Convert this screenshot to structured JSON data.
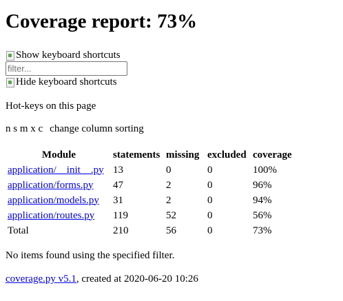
{
  "header": {
    "title": "Coverage report: 73%"
  },
  "keyboard": {
    "show_label": "Show keyboard shortcuts",
    "hide_label": "Hide keyboard shortcuts",
    "hotkeys_heading": "Hot-keys on this page",
    "sort_keys": "n s m x c",
    "sort_description": "change column sorting"
  },
  "filter": {
    "placeholder": "filter...",
    "value": ""
  },
  "table": {
    "headers": {
      "module": "Module",
      "statements": "statements",
      "missing": "missing",
      "excluded": "excluded",
      "coverage": "coverage"
    },
    "rows": [
      {
        "module": "application/__init__.py",
        "statements": "13",
        "missing": "0",
        "excluded": "0",
        "coverage": "100%"
      },
      {
        "module": "application/forms.py",
        "statements": "47",
        "missing": "2",
        "excluded": "0",
        "coverage": "96%"
      },
      {
        "module": "application/models.py",
        "statements": "31",
        "missing": "2",
        "excluded": "0",
        "coverage": "94%"
      },
      {
        "module": "application/routes.py",
        "statements": "119",
        "missing": "52",
        "excluded": "0",
        "coverage": "56%"
      }
    ],
    "total": {
      "module": "Total",
      "statements": "210",
      "missing": "56",
      "excluded": "0",
      "coverage": "73%"
    }
  },
  "no_items_message": "No items found using the specified filter.",
  "footer": {
    "link_text": "coverage.py v5.1",
    "created_text": ", created at 2020-06-20 10:26"
  }
}
